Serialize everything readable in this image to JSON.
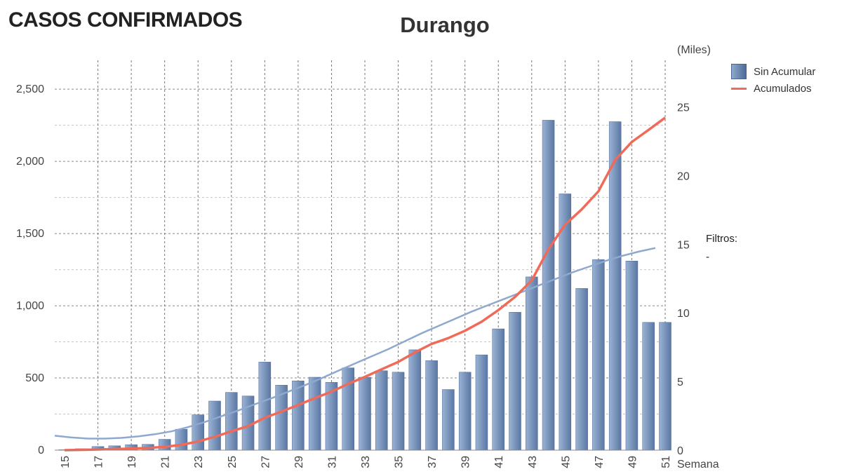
{
  "header": {
    "title": "CASOS CONFIRMADOS"
  },
  "filters": {
    "label": "Filtros:",
    "value": "-"
  },
  "chart_data": {
    "type": "bar",
    "title": "Durango",
    "xlabel": "Semana",
    "y2label": "(Miles)",
    "x": [
      15,
      16,
      17,
      18,
      19,
      20,
      21,
      22,
      23,
      24,
      25,
      26,
      27,
      28,
      29,
      30,
      31,
      32,
      33,
      34,
      35,
      36,
      37,
      38,
      39,
      40,
      41,
      42,
      43,
      44,
      45,
      46,
      47,
      48,
      49,
      50,
      51
    ],
    "x_tick_labels": [
      "15",
      "17",
      "19",
      "21",
      "23",
      "25",
      "27",
      "29",
      "31",
      "33",
      "35",
      "37",
      "39",
      "41",
      "43",
      "45",
      "47",
      "49",
      "51"
    ],
    "ylim": [
      0,
      2700
    ],
    "y_ticks": [
      0,
      500,
      1000,
      1500,
      2000,
      2500
    ],
    "y_tick_labels": [
      "0",
      "500",
      "1,000",
      "1,500",
      "2,000",
      "2,500"
    ],
    "y2lim": [
      0,
      28.4
    ],
    "y2_ticks": [
      0,
      5,
      10,
      15,
      20,
      25
    ],
    "y2_tick_labels": [
      "0",
      "5",
      "10",
      "15",
      "20",
      "25"
    ],
    "grid": true,
    "legend_position": "top-right",
    "colors": {
      "bar": "#5b78a3",
      "cumulative": "#f06a5a",
      "trend": "#8ea9cf"
    },
    "series": [
      {
        "name": "Sin Acumular",
        "type": "bar",
        "axis": "left",
        "values": [
          3,
          10,
          25,
          30,
          38,
          40,
          75,
          145,
          245,
          340,
          400,
          375,
          610,
          450,
          480,
          505,
          470,
          570,
          505,
          550,
          540,
          695,
          620,
          420,
          540,
          660,
          840,
          955,
          1200,
          2285,
          1775,
          1120,
          1320,
          2275,
          1310,
          885,
          885
        ]
      },
      {
        "name": "Acumulados",
        "type": "line",
        "axis": "right",
        "values": [
          0.0,
          0.02,
          0.05,
          0.08,
          0.12,
          0.16,
          0.24,
          0.39,
          0.63,
          0.97,
          1.37,
          1.75,
          2.36,
          2.81,
          3.29,
          3.79,
          4.26,
          4.83,
          5.34,
          5.89,
          6.43,
          7.12,
          7.74,
          8.16,
          8.7,
          9.36,
          10.2,
          11.16,
          12.36,
          14.64,
          16.42,
          17.54,
          18.86,
          21.14,
          22.45,
          23.33,
          24.22
        ]
      },
      {
        "type": "line",
        "axis": "left",
        "values": [
          100,
          88,
          80,
          80,
          85,
          95,
          110,
          130,
          160,
          195,
          235,
          275,
          318,
          360,
          405,
          450,
          498,
          550,
          600,
          650,
          700,
          755,
          810,
          860,
          910,
          960,
          1005,
          1050,
          1095,
          1140,
          1185,
          1230,
          1270,
          1310,
          1345,
          1375,
          1400
        ]
      }
    ]
  }
}
